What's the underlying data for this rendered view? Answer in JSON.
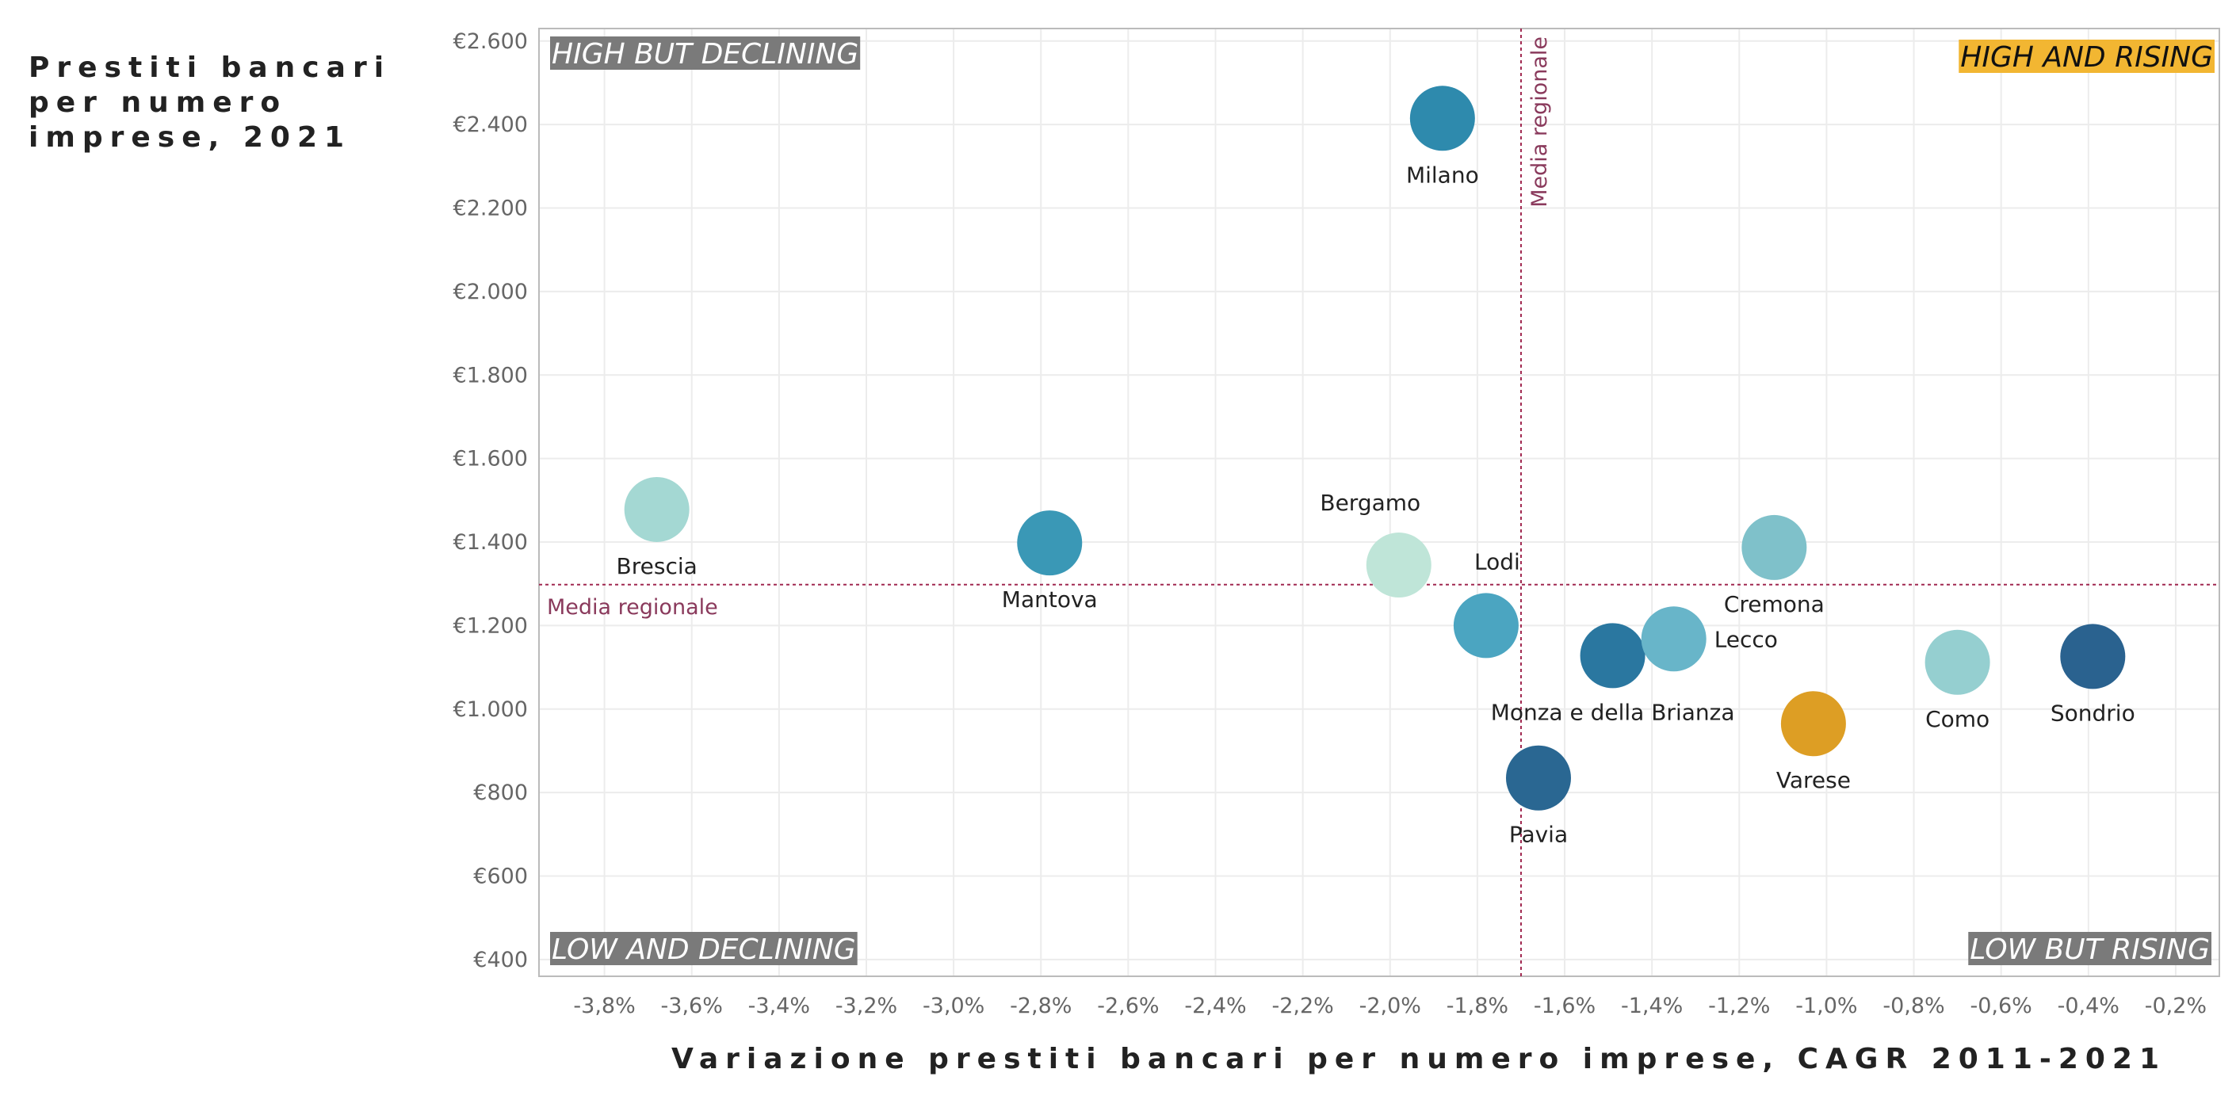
{
  "chart_data": {
    "type": "scatter",
    "title": "Prestiti bancari per numero imprese, 2021",
    "xlabel": "Variazione prestiti bancari per numero imprese, CAGR 2011-2021",
    "ylabel": "Prestiti bancari per numero imprese, 2021",
    "xlim": [
      -3.95,
      -0.1
    ],
    "ylim": [
      360,
      2630
    ],
    "x_ticks": [
      -3.8,
      -3.6,
      -3.4,
      -3.2,
      -3.0,
      -2.8,
      -2.6,
      -2.4,
      -2.2,
      -2.0,
      -1.8,
      -1.6,
      -1.4,
      -1.2,
      -1.0,
      -0.8,
      -0.6,
      -0.4,
      -0.2
    ],
    "x_tick_labels": [
      "-3,8%",
      "-3,6%",
      "-3,4%",
      "-3,2%",
      "-3,0%",
      "-2,8%",
      "-2,6%",
      "-2,4%",
      "-2,2%",
      "-2,0%",
      "-1,8%",
      "-1,6%",
      "-1,4%",
      "-1,2%",
      "-1,0%",
      "-0,8%",
      "-0,6%",
      "-0,4%",
      "-0,2%"
    ],
    "y_ticks": [
      400,
      600,
      800,
      1000,
      1200,
      1400,
      1600,
      1800,
      2000,
      2200,
      2400,
      2600
    ],
    "y_tick_labels": [
      "€400",
      "€600",
      "€800",
      "€1.000",
      "€1.200",
      "€1.400",
      "€1.600",
      "€1.800",
      "€2.000",
      "€2.200",
      "€2.400",
      "€2.600"
    ],
    "grid": true,
    "points": [
      {
        "name": "Milano",
        "x": -1.88,
        "y": 2415,
        "color": "#2e8aad",
        "label_pos": "below"
      },
      {
        "name": "Brescia",
        "x": -3.68,
        "y": 1478,
        "color": "#a4d8d3",
        "label_pos": "below"
      },
      {
        "name": "Mantova",
        "x": -2.78,
        "y": 1398,
        "color": "#3a98b6",
        "label_pos": "below"
      },
      {
        "name": "Bergamo",
        "x": -1.98,
        "y": 1345,
        "color": "#bfe5d8",
        "label_pos": "above"
      },
      {
        "name": "Lodi",
        "x": -1.78,
        "y": 1200,
        "color": "#4ba5c1",
        "label_pos": "above"
      },
      {
        "name": "Monza e della Brianza",
        "x": -1.49,
        "y": 1128,
        "color": "#2a77a0",
        "label_pos": "below"
      },
      {
        "name": "Lecco",
        "x": -1.35,
        "y": 1168,
        "color": "#68b5c9",
        "label_pos": "right"
      },
      {
        "name": "Cremona",
        "x": -1.12,
        "y": 1387,
        "color": "#7fc1ca",
        "label_pos": "below"
      },
      {
        "name": "Varese",
        "x": -1.03,
        "y": 965,
        "color": "#dd9e24",
        "label_pos": "below"
      },
      {
        "name": "Como",
        "x": -0.7,
        "y": 1112,
        "color": "#95cfd0",
        "label_pos": "below"
      },
      {
        "name": "Sondrio",
        "x": -0.39,
        "y": 1126,
        "color": "#2a628f",
        "label_pos": "below"
      },
      {
        "name": "Pavia",
        "x": -1.66,
        "y": 835,
        "color": "#2a6792",
        "label_pos": "below"
      }
    ],
    "reference_lines": {
      "x": {
        "value": -1.7,
        "label": "Media regionale"
      },
      "y": {
        "value": 1298,
        "label": "Media regionale"
      }
    },
    "quadrant_labels": {
      "top_left": {
        "text": "HIGH BUT DECLINING",
        "bg": "#7a7a7a",
        "fg": "#ffffff"
      },
      "top_right": {
        "text": "HIGH AND RISING",
        "bg": "#f2b632",
        "fg": "#111111"
      },
      "bottom_left": {
        "text": "LOW AND DECLINING",
        "bg": "#7a7a7a",
        "fg": "#ffffff"
      },
      "bottom_right": {
        "text": "LOW BUT RISING",
        "bg": "#7a7a7a",
        "fg": "#ffffff"
      }
    },
    "reference_color": "#a02850"
  }
}
